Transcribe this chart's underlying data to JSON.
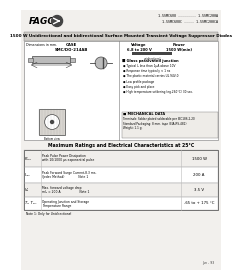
{
  "white": "#ffffff",
  "black": "#000000",
  "dark_gray": "#444444",
  "mid_gray": "#777777",
  "light_gray": "#bbbbbb",
  "very_light": "#e8e8e8",
  "bg_color": "#f2f0ed",
  "header_bg": "#e0ddd8",
  "title_bar_bg": "#d0cdc8",
  "logo_text": "FAGOR",
  "part_numbers_right": [
    "1.5SMC6V8 ......... 1.5SMC200A",
    "1.5SMC6V8C ..... 1.5SMC200CA"
  ],
  "main_title": "1500 W Unidirectional and bidirectional Surface Mounted Transient Voltage Suppressor Diodes",
  "features_title": "Glass passivated junction",
  "features": [
    "Typical Iₔ less than 1μA above 10V",
    "Response time typically < 1 ns",
    "The plastic material carries UL 94V-0",
    "Low profile package",
    "Easy pick and place",
    "High temperature soldering (eg.260°C/ 30 sec."
  ],
  "mech_title": "MECHANICAL DATA",
  "mech_text": "Terminals: Solder plated solderable per IEC186-2-20\nStandard Packaging: 8 mm. tape (EIA-RS-481)\nWeight: 1.1 g.",
  "table_title": "Maximum Ratings and Electrical Characteristics at 25°C",
  "rows": [
    {
      "symbol": "Pₚₐᵥ",
      "description": "Peak Pulse Power Dissipation\nwith 10/1000 μs exponential pulse",
      "value": "1500 W"
    },
    {
      "symbol": "Iₚₐᵥ",
      "description": "Peak Forward Surge Current,8.3 ms.\n(Jedec Method)              Note 1",
      "value": "200 A"
    },
    {
      "symbol": "V₆",
      "description": "Max. forward voltage drop\nmI₆ = 200 A                   Note 1",
      "value": "3.5 V"
    },
    {
      "symbol": "Tⱼ, Tₛₜₜ",
      "description": "Operating Junction and Storage\nTemperature Range",
      "value": "-65 to + 175 °C"
    }
  ],
  "footnote": "Note 1: Only for Unidirectional",
  "footer_text": "Jun - 93"
}
